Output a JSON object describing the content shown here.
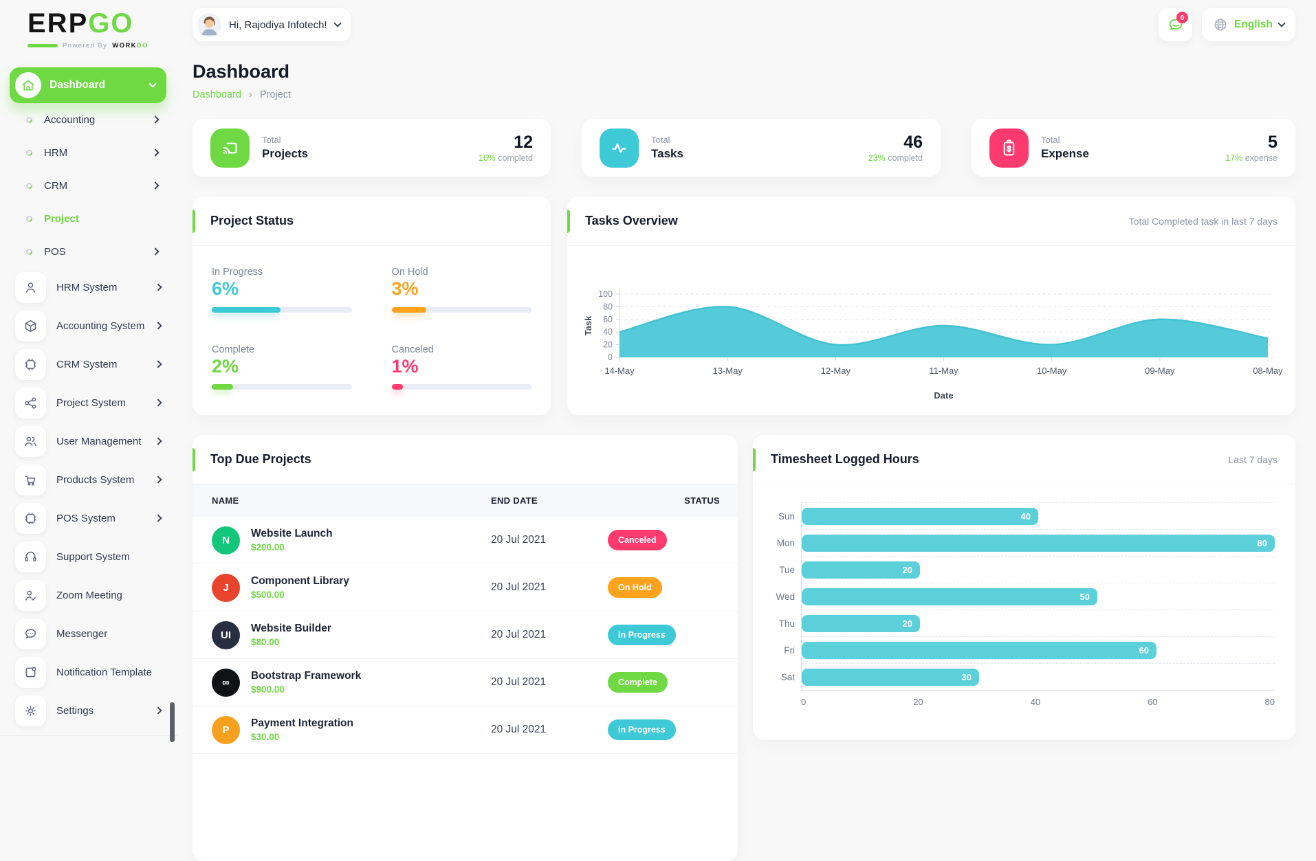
{
  "brand": {
    "logo_text_dark": "ERP",
    "logo_text_accent": "GO",
    "powered_by": "Powered By",
    "powered_brand_dark": "WORK",
    "powered_brand_accent": "DO"
  },
  "header": {
    "greeting": "Hi, Rajodiya Infotech!",
    "messages_count": "0",
    "language": "English"
  },
  "page": {
    "title": "Dashboard",
    "breadcrumb_root": "Dashboard",
    "breadcrumb_separator": "›",
    "breadcrumb_current": "Project"
  },
  "sidebar": {
    "dashboard_label": "Dashboard",
    "sub_items": [
      {
        "label": "Accounting",
        "chevron": true,
        "active": false
      },
      {
        "label": "HRM",
        "chevron": true,
        "active": false
      },
      {
        "label": "CRM",
        "chevron": true,
        "active": false
      },
      {
        "label": "Project",
        "chevron": false,
        "active": true
      },
      {
        "label": "POS",
        "chevron": true,
        "active": false
      }
    ],
    "items": [
      {
        "label": "HRM System",
        "icon": "user-icon",
        "chevron": true
      },
      {
        "label": "Accounting System",
        "icon": "cube-icon",
        "chevron": true
      },
      {
        "label": "CRM System",
        "icon": "frame-icon",
        "chevron": true
      },
      {
        "label": "Project System",
        "icon": "share-icon",
        "chevron": true
      },
      {
        "label": "User Management",
        "icon": "users-icon",
        "chevron": true
      },
      {
        "label": "Products System",
        "icon": "cart-icon",
        "chevron": true
      },
      {
        "label": "POS System",
        "icon": "frame-icon",
        "chevron": true
      },
      {
        "label": "Support System",
        "icon": "headset-icon",
        "chevron": false
      },
      {
        "label": "Zoom Meeting",
        "icon": "user-check-icon",
        "chevron": false
      },
      {
        "label": "Messenger",
        "icon": "chat-icon",
        "chevron": false
      },
      {
        "label": "Notification Template",
        "icon": "notification-icon",
        "chevron": false
      },
      {
        "label": "Settings",
        "icon": "gear-icon",
        "chevron": true
      }
    ]
  },
  "stats": [
    {
      "label_top": "Total",
      "label": "Projects",
      "value": "12",
      "percent": "16%",
      "suffix": "completd",
      "icon": "screen-share-icon",
      "color": "#6FD943"
    },
    {
      "label_top": "Total",
      "label": "Tasks",
      "value": "46",
      "percent": "23%",
      "suffix": "completd",
      "icon": "activity-icon",
      "color": "#3EC9D6"
    },
    {
      "label_top": "Total",
      "label": "Expense",
      "value": "5",
      "percent": "17%",
      "suffix": "expense",
      "icon": "clipboard-dollar-icon",
      "color": "#FF3A6E"
    }
  ],
  "project_status": {
    "title": "Project Status",
    "metrics": [
      {
        "label": "In Progress",
        "value": "6%",
        "color": "#3EC9D6",
        "bar_percent": 49
      },
      {
        "label": "On Hold",
        "value": "3%",
        "color": "#FFA21D",
        "bar_percent": 25
      },
      {
        "label": "Complete",
        "value": "2%",
        "color": "#6FD943",
        "bar_percent": 15
      },
      {
        "label": "Canceled",
        "value": "1%",
        "color": "#FF3A6E",
        "bar_percent": 8
      }
    ]
  },
  "top_due_projects": {
    "title": "Top Due Projects",
    "columns": [
      "NAME",
      "END DATE",
      "STATUS"
    ],
    "rows": [
      {
        "name": "Website Launch",
        "price": "$200.00",
        "end_date": "20 Jul 2021",
        "status": "Canceled",
        "status_color": "#FF3A6E",
        "avatar_text": "N",
        "avatar_color": "#12C77A"
      },
      {
        "name": "Component Library",
        "price": "$500.00",
        "end_date": "20 Jul 2021",
        "status": "On Hold",
        "status_color": "#FFA21D",
        "avatar_text": "J",
        "avatar_color": "#E8432D"
      },
      {
        "name": "Website Builder",
        "price": "$80.00",
        "end_date": "20 Jul 2021",
        "status": "In Progress",
        "status_color": "#3EC9D6",
        "avatar_text": "UI",
        "avatar_color": "#272E3F"
      },
      {
        "name": "Bootstrap Framework",
        "price": "$900.00",
        "end_date": "20 Jul 2021",
        "status": "Complete",
        "status_color": "#6FD943",
        "avatar_text": "∞",
        "avatar_color": "#101316"
      },
      {
        "name": "Payment Integration",
        "price": "$30.00",
        "end_date": "20 Jul 2021",
        "status": "In Progress",
        "status_color": "#3EC9D6",
        "avatar_text": "P",
        "avatar_color": "#F6A01F"
      }
    ]
  },
  "chart_data": [
    {
      "type": "area",
      "title": "Tasks Overview",
      "subtitle": "Total Completed task in last 7 days",
      "x": [
        "14-May",
        "13-May",
        "12-May",
        "11-May",
        "10-May",
        "09-May",
        "08-May"
      ],
      "values": [
        40,
        80,
        20,
        50,
        20,
        60,
        30
      ],
      "xlabel": "Date",
      "ylabel": "Task",
      "ylim": [
        0,
        100
      ],
      "yticks": [
        0,
        20,
        40,
        60,
        80,
        100
      ],
      "grid": "dashed-horizontal",
      "legend": "none",
      "color": "#55CBD9"
    },
    {
      "type": "bar",
      "orientation": "horizontal",
      "title": "Timesheet Logged Hours",
      "subtitle": "Last 7 days",
      "categories": [
        "Sun",
        "Mon",
        "Tue",
        "Wed",
        "Thu",
        "Fri",
        "Sat"
      ],
      "values": [
        40,
        80,
        20,
        50,
        20,
        60,
        30
      ],
      "xlim": [
        0,
        80
      ],
      "xticks": [
        0,
        20,
        40,
        60,
        80
      ],
      "value_labels": true,
      "grid": "dashed-row-separators",
      "color": "#5BCFDA"
    }
  ],
  "colors": {
    "accent_green": "#6FD943",
    "teal": "#3EC9D6",
    "orange": "#FFA21D",
    "pink": "#FF3A6E",
    "page_bg": "#f8f8f8"
  }
}
